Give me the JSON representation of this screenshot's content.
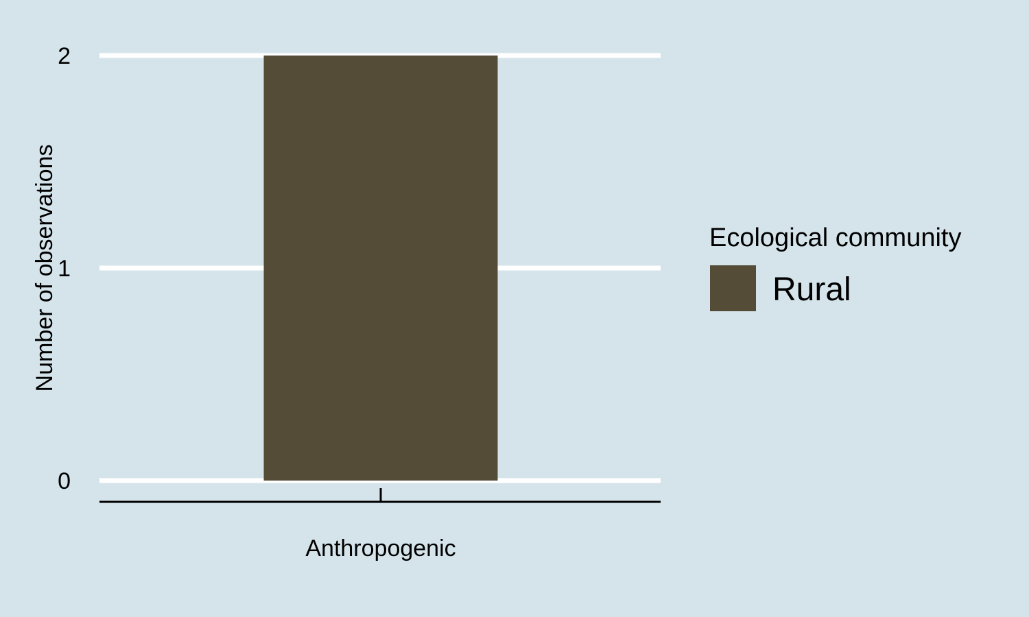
{
  "chart_data": {
    "type": "bar",
    "categories": [
      "Anthropogenic"
    ],
    "series": [
      {
        "name": "Rural",
        "values": [
          2
        ]
      }
    ],
    "ylabel": "Number of observations",
    "ylim": [
      0,
      2
    ],
    "yticks": [
      "0",
      "1",
      "2"
    ],
    "grid": true,
    "legend": {
      "title": "Ecological community",
      "placement": "right"
    }
  },
  "colors": {
    "background": "#d5e4eb",
    "bar": "#554c38",
    "grid": "#ffffff",
    "axis": "#000000"
  }
}
